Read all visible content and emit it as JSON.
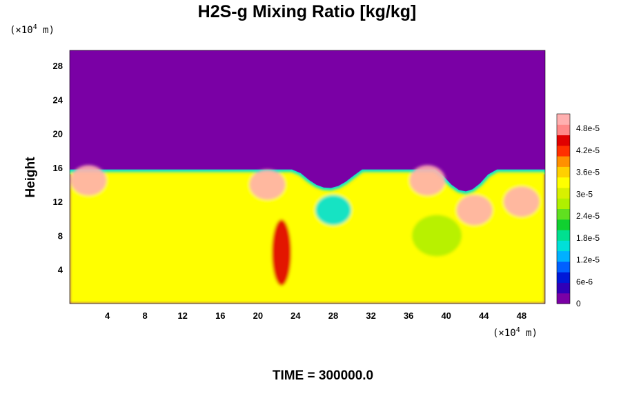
{
  "chart_data": {
    "type": "heatmap",
    "title": "H2S-g Mixing Ratio [kg/kg]",
    "ylabel": "Height",
    "xlabel": "",
    "y_unit_prefix": "(×10",
    "y_unit_exp": "4",
    "y_unit_suffix": " m)",
    "x_unit_prefix": "(×10",
    "x_unit_exp": "4",
    "x_unit_suffix": " m)",
    "xlim": [
      0,
      50.5
    ],
    "ylim": [
      0,
      29.8
    ],
    "x_ticks": [
      4,
      8,
      12,
      16,
      20,
      24,
      28,
      32,
      36,
      40,
      44,
      48
    ],
    "x_tick_labels": [
      "4",
      "8",
      "12",
      "16",
      "20",
      "24",
      "28",
      "32",
      "36",
      "40",
      "44",
      "48"
    ],
    "y_ticks": [
      4,
      8,
      12,
      16,
      20,
      24,
      28
    ],
    "y_tick_labels": [
      "4",
      "8",
      "12",
      "16",
      "20",
      "24",
      "28"
    ],
    "colorbar": {
      "min": 0,
      "max": 5.2e-05,
      "tick_values": [
        0,
        6e-06,
        1.2e-05,
        1.8e-05,
        2.4e-05,
        3e-05,
        3.6e-05,
        4.2e-05,
        4.8e-05
      ],
      "tick_labels": [
        "0",
        "6e-6",
        "1.2e-5",
        "1.8e-5",
        "2.4e-5",
        "3e-5",
        "3.6e-5",
        "4.2e-5",
        "4.8e-5"
      ],
      "colors": [
        "#7a00a5",
        "#3000b8",
        "#0018d8",
        "#0060ff",
        "#00b0ff",
        "#00e0d8",
        "#00e090",
        "#10d030",
        "#60e020",
        "#b0f000",
        "#d8f000",
        "#ffff00",
        "#ffd000",
        "#ff9000",
        "#ff3000",
        "#e00000",
        "#ff8888",
        "#ffb0b0"
      ]
    },
    "field": {
      "background_value": 0,
      "lower_layer_value": 3.3e-05,
      "layer_top_height": 15.5,
      "plumes": [
        {
          "x": 2,
          "y": 14.5,
          "value": 5.2e-05
        },
        {
          "x": 21,
          "y": 14,
          "value": 5.2e-05
        },
        {
          "x": 22.5,
          "y": 6,
          "value": 4.6e-05
        },
        {
          "x": 28,
          "y": 11,
          "value": 1.5e-05
        },
        {
          "x": 38,
          "y": 14.5,
          "value": 5.2e-05
        },
        {
          "x": 39,
          "y": 8,
          "value": 2.6e-05
        },
        {
          "x": 43,
          "y": 11,
          "value": 5.2e-05
        },
        {
          "x": 48,
          "y": 12,
          "value": 5.2e-05
        }
      ]
    }
  },
  "footer": {
    "time_label": "TIME = 300000.0"
  }
}
